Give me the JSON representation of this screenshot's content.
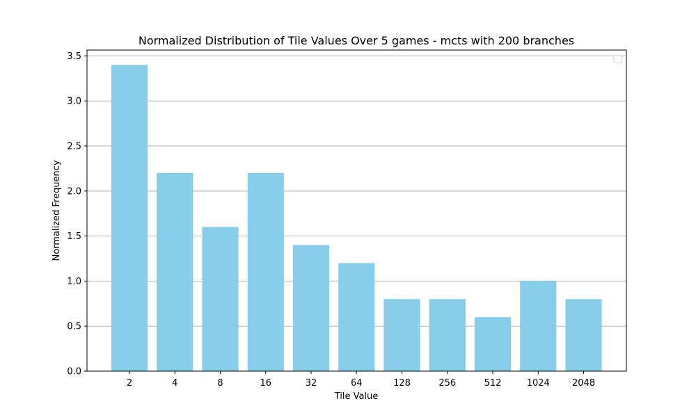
{
  "chart_data": {
    "type": "bar",
    "title": "Normalized Distribution of Tile Values Over 5 games - mcts with 200 branches",
    "xlabel": "Tile Value",
    "ylabel": "Normalized Frequency",
    "categories": [
      "2",
      "4",
      "8",
      "16",
      "32",
      "64",
      "128",
      "256",
      "512",
      "1024",
      "2048"
    ],
    "values": [
      3.4,
      2.2,
      1.6,
      2.2,
      1.4,
      1.2,
      0.8,
      0.8,
      0.6,
      1.0,
      0.8
    ],
    "ylim": [
      0,
      3.565
    ],
    "yticks": [
      0.0,
      0.5,
      1.0,
      1.5,
      2.0,
      2.5,
      3.0,
      3.5
    ],
    "ytick_labels": [
      "0.0",
      "0.5",
      "1.0",
      "1.5",
      "2.0",
      "2.5",
      "3.0",
      "3.5"
    ],
    "grid": "horizontal",
    "legend": "top-right (empty)",
    "colors": {
      "bar": "#87ceeb",
      "grid": "#b0b0b0",
      "axes": "#000000"
    }
  }
}
